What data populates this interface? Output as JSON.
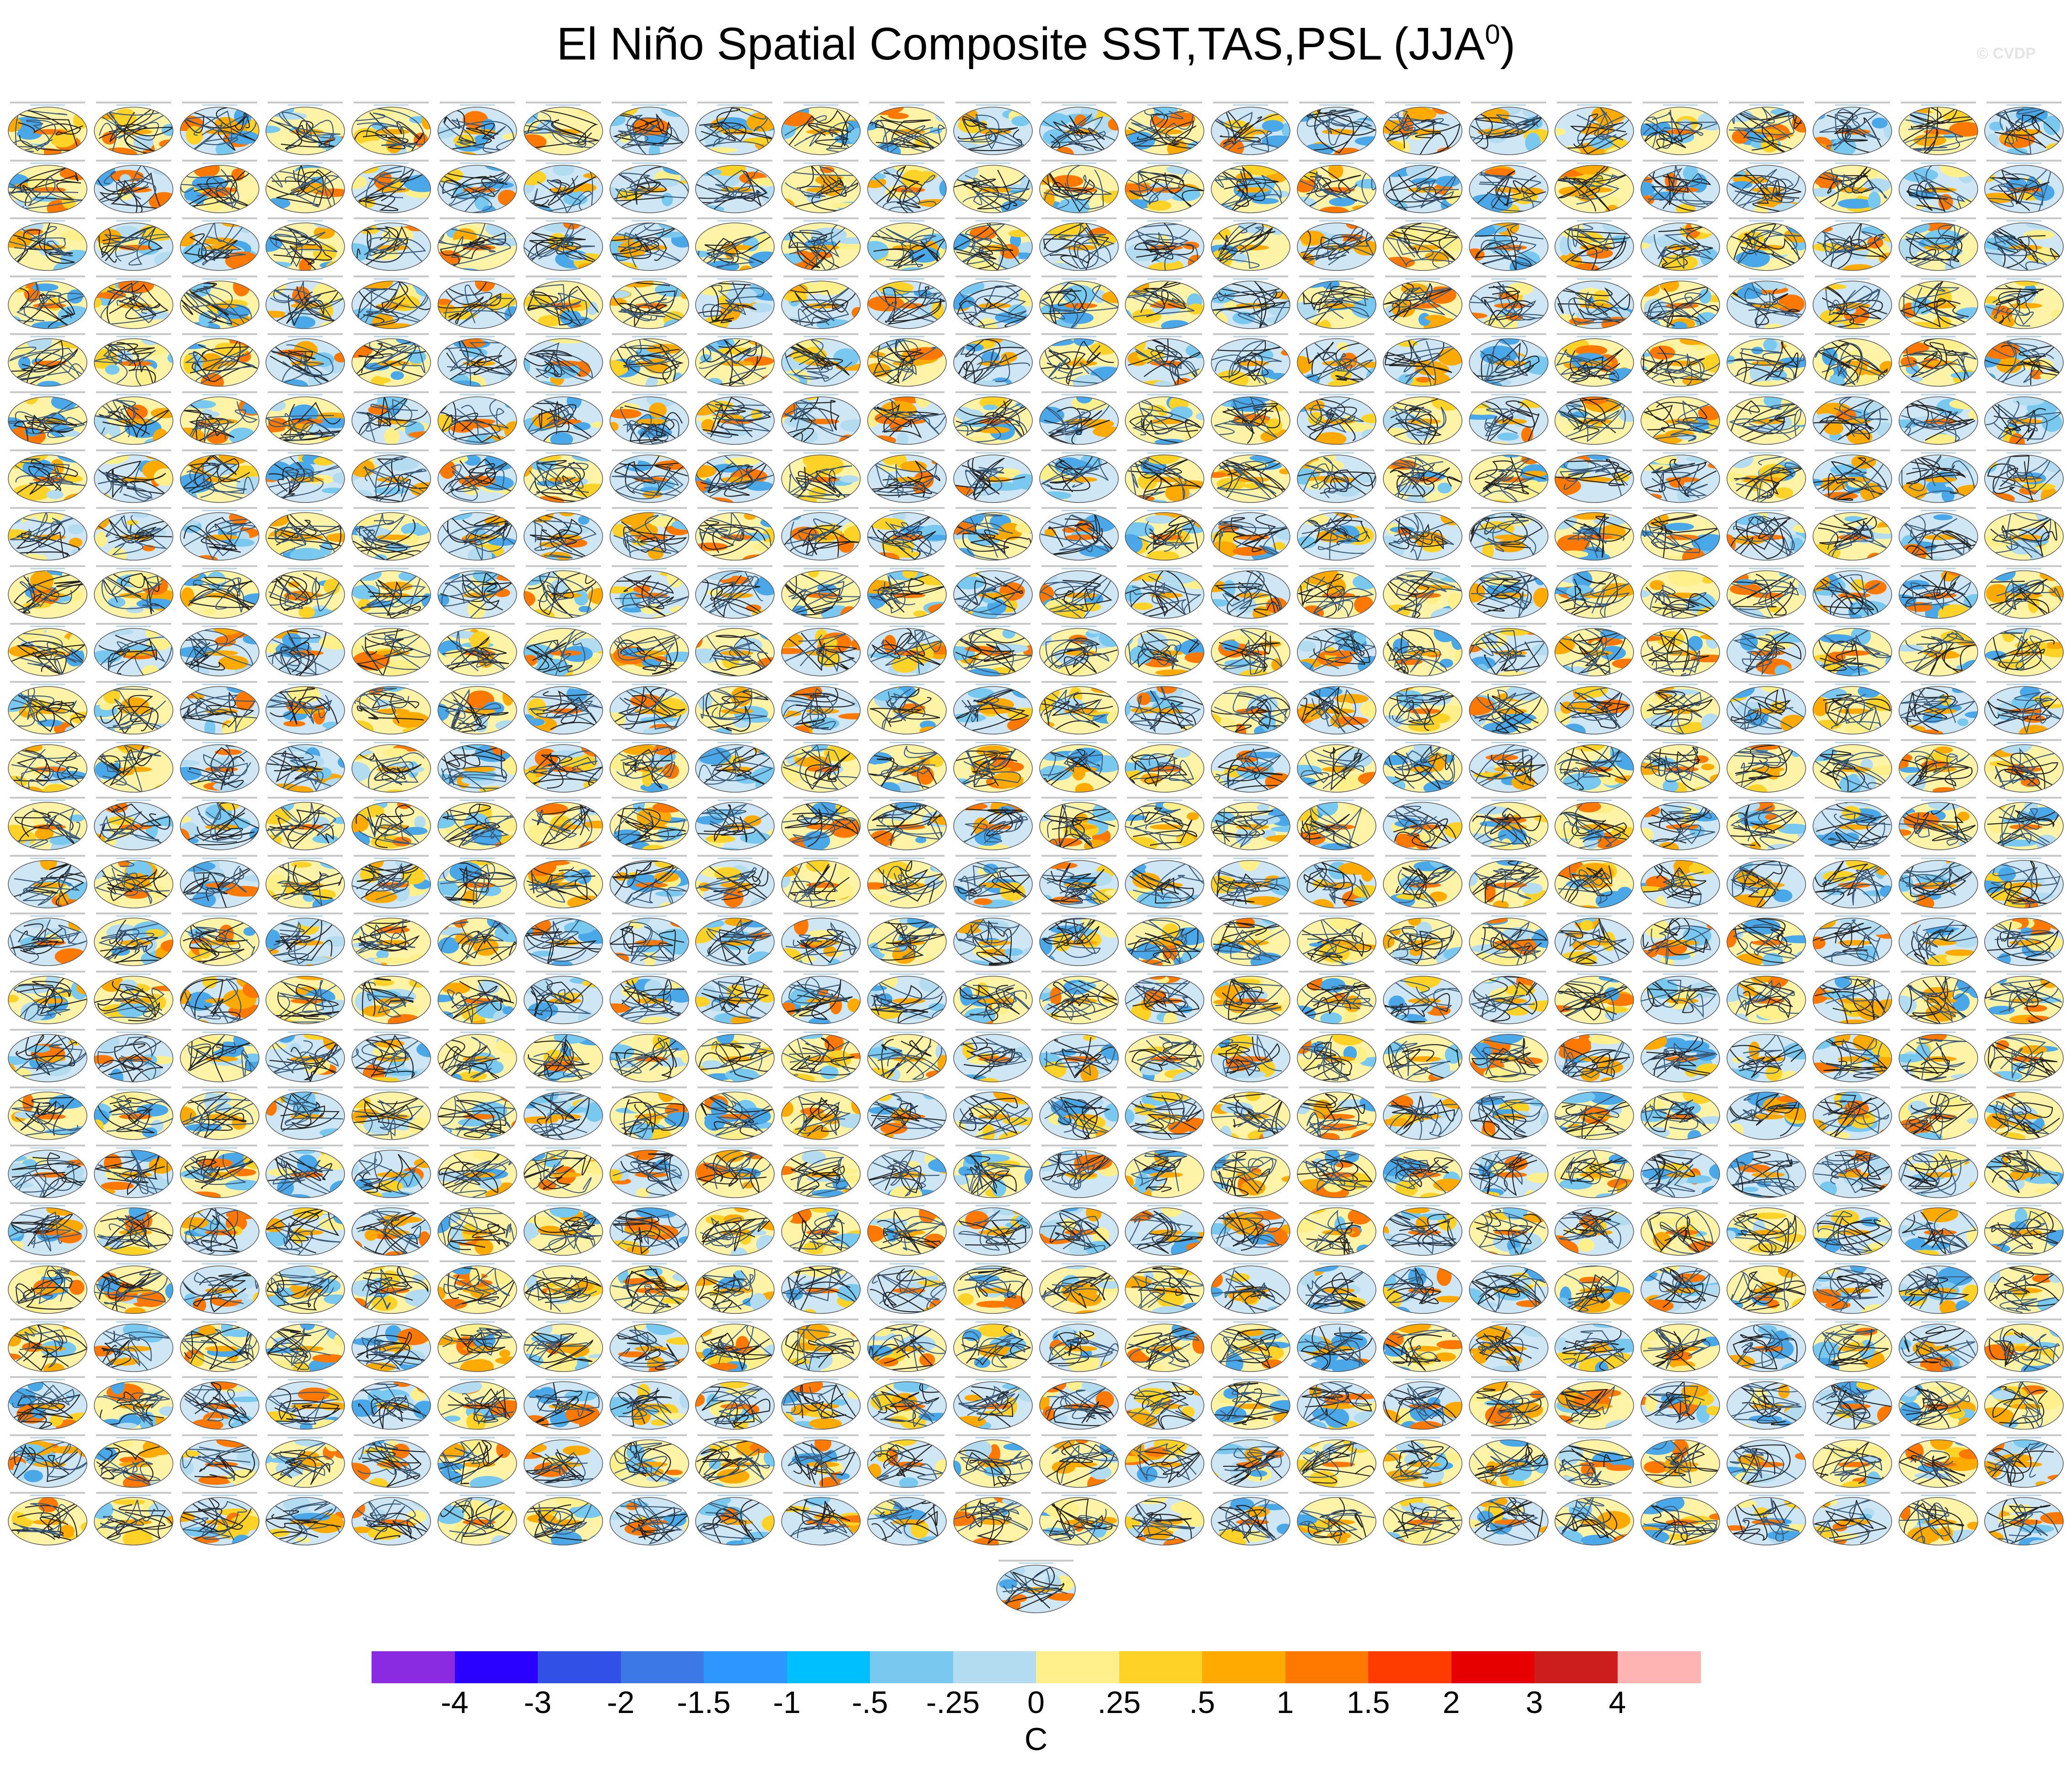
{
  "title": {
    "main": "El Niño Spatial Composite SST,TAS,PSL (JJA",
    "sup": "0",
    "close": ")"
  },
  "watermark": "© CVDP",
  "panels": {
    "rows": 25,
    "cols": 24,
    "extra_last_row": 1
  },
  "colorbar": {
    "colors": [
      "#8a2be2",
      "#2a00ff",
      "#3050e6",
      "#3c78e6",
      "#2d96ff",
      "#00bfff",
      "#78c8f0",
      "#b4dcf0",
      "#fff08c",
      "#ffd228",
      "#ffaa00",
      "#ff7800",
      "#ff3c00",
      "#e60000",
      "#cd1e1e",
      "#ffb4b4"
    ],
    "labels": [
      "-4",
      "-3",
      "-2",
      "-1.5",
      "-1",
      "-.5",
      "-.25",
      "0",
      ".25",
      ".5",
      "1",
      "1.5",
      "2",
      "3",
      "4"
    ],
    "unit": "C"
  }
}
